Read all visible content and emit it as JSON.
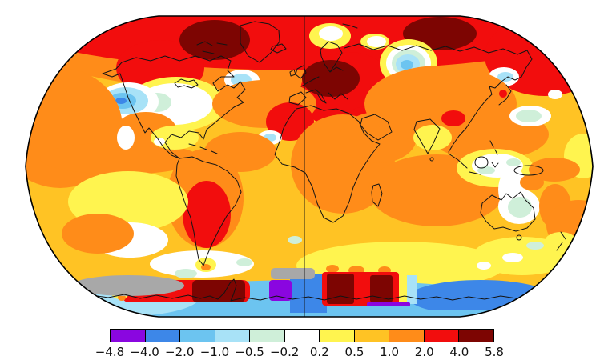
{
  "figure": {
    "kind": "global-temperature-anomaly-map",
    "map_shape": "robinson-oval",
    "gridlines": [
      "equator",
      "central-meridian"
    ]
  },
  "palette": {
    "purple": "#8a06e0",
    "blue": "#3d87e8",
    "light_blue": "#6cc4f0",
    "pale_blue": "#a8e2f7",
    "pale_green": "#cfefd9",
    "white": "#ffffff",
    "yellow": "#fff44f",
    "amber": "#ffc324",
    "orange": "#ff8c19",
    "red": "#f20d0d",
    "dark_red": "#7d0502",
    "gray": "#a8a8a8",
    "coastline": "#141414",
    "background": "#ffffff"
  },
  "colorbar": {
    "tick_labels": [
      "−4.8",
      "−4.0",
      "−2.0",
      "−1.0",
      "−0.5",
      "−0.2",
      "0.2",
      "0.5",
      "1.0",
      "2.0",
      "4.0",
      "5.8"
    ],
    "segment_colors": [
      "#8a06e0",
      "#3d87e8",
      "#6cc4f0",
      "#a8e2f7",
      "#cfefd9",
      "#ffffff",
      "#fff44f",
      "#ffc324",
      "#ff8c19",
      "#f20d0d",
      "#7d0502"
    ],
    "missing_data_color": "#a8a8a8"
  }
}
